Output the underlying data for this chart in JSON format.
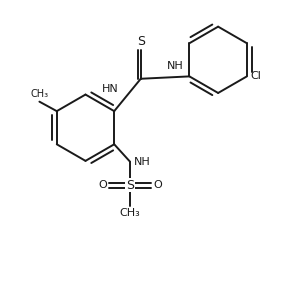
{
  "bg_color": "#ffffff",
  "line_color": "#1a1a1a",
  "line_width": 1.4,
  "font_size": 8,
  "figsize": [
    2.91,
    2.87
  ],
  "dpi": 100,
  "xlim": [
    0,
    9
  ],
  "ylim": [
    0,
    9
  ]
}
